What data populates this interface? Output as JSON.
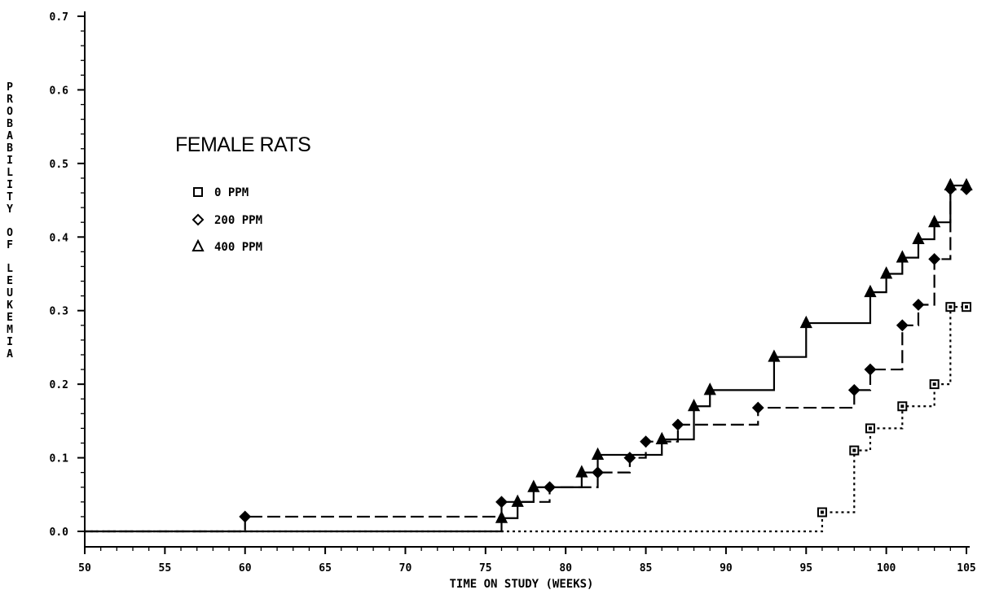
{
  "chart_data": {
    "type": "line",
    "step": true,
    "title": "FEMALE RATS",
    "xlabel": "TIME ON STUDY (WEEKS)",
    "ylabel": "PROBABILITY OF LEUKEMIA",
    "xlim": [
      50,
      105
    ],
    "ylim": [
      0,
      0.7
    ],
    "x_ticks": [
      "50",
      "55",
      "60",
      "65",
      "70",
      "75",
      "80",
      "85",
      "90",
      "95",
      "100",
      "105"
    ],
    "y_ticks": [
      "0.0",
      "0.1",
      "0.2",
      "0.3",
      "0.4",
      "0.5",
      "0.6",
      "0.7"
    ],
    "legend_position": "upper-left",
    "series": [
      {
        "name": "0 PPM",
        "marker": "square",
        "line_style": "dotted",
        "points": [
          [
            50,
            0
          ],
          [
            96,
            0.026
          ],
          [
            98,
            0.11
          ],
          [
            99,
            0.14
          ],
          [
            101,
            0.17
          ],
          [
            103,
            0.2
          ],
          [
            104,
            0.305
          ],
          [
            105,
            0.305
          ]
        ]
      },
      {
        "name": "200 PPM",
        "marker": "diamond",
        "line_style": "long-dash",
        "points": [
          [
            50,
            0
          ],
          [
            60,
            0.02
          ],
          [
            76,
            0.04
          ],
          [
            79,
            0.06
          ],
          [
            82,
            0.08
          ],
          [
            84,
            0.1
          ],
          [
            85,
            0.122
          ],
          [
            87,
            0.145
          ],
          [
            92,
            0.168
          ],
          [
            98,
            0.192
          ],
          [
            99,
            0.22
          ],
          [
            101,
            0.28
          ],
          [
            102,
            0.308
          ],
          [
            103,
            0.37
          ],
          [
            104,
            0.465
          ],
          [
            105,
            0.465
          ]
        ]
      },
      {
        "name": "400 PPM",
        "marker": "triangle",
        "line_style": "solid",
        "points": [
          [
            50,
            0
          ],
          [
            76,
            0.018
          ],
          [
            77,
            0.04
          ],
          [
            78,
            0.06
          ],
          [
            81,
            0.08
          ],
          [
            82,
            0.104
          ],
          [
            86,
            0.125
          ],
          [
            88,
            0.17
          ],
          [
            89,
            0.192
          ],
          [
            93,
            0.237
          ],
          [
            95,
            0.283
          ],
          [
            99,
            0.325
          ],
          [
            100,
            0.35
          ],
          [
            101,
            0.372
          ],
          [
            102,
            0.397
          ],
          [
            103,
            0.42
          ],
          [
            104,
            0.47
          ],
          [
            105,
            0.47
          ]
        ]
      }
    ]
  }
}
